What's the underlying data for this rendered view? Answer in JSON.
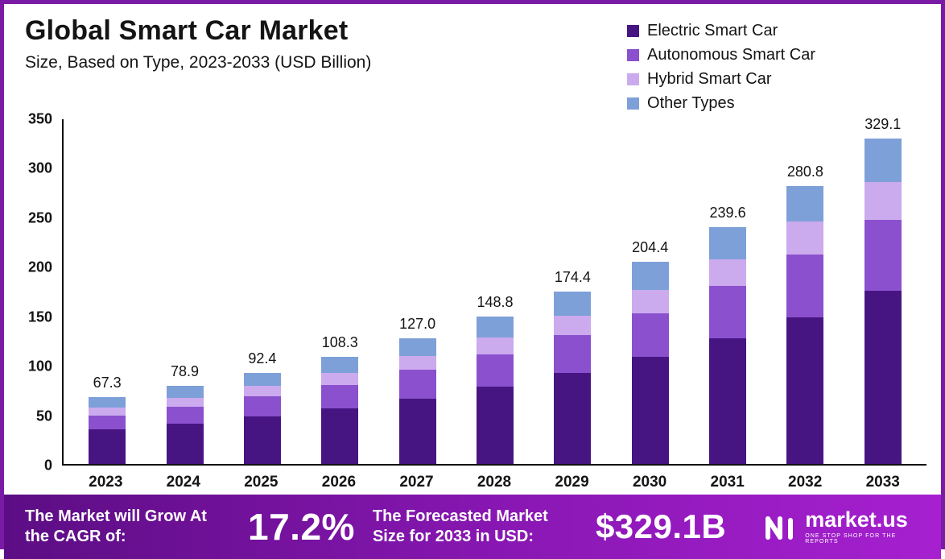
{
  "header": {
    "title": "Global Smart Car Market",
    "subtitle": "Size, Based on Type, 2023-2033 (USD Billion)"
  },
  "chart_data": {
    "type": "bar",
    "stacked": true,
    "title": "Global Smart Car Market",
    "subtitle": "Size, Based on Type, 2023-2033 (USD Billion)",
    "categories": [
      "2023",
      "2024",
      "2025",
      "2026",
      "2027",
      "2028",
      "2029",
      "2030",
      "2031",
      "2032",
      "2033"
    ],
    "totals": [
      "67.3",
      "78.9",
      "92.4",
      "108.3",
      "127.0",
      "148.8",
      "174.4",
      "204.4",
      "239.6",
      "280.8",
      "329.1"
    ],
    "series": [
      {
        "name": "Electric Smart Car",
        "color": "#471582",
        "values": [
          35,
          41,
          48,
          56,
          66,
          78,
          92,
          108,
          127,
          148,
          175
        ]
      },
      {
        "name": "Autonomous Smart Car",
        "color": "#8b50ce",
        "values": [
          14,
          17,
          20,
          24,
          29,
          33,
          38,
          44,
          53,
          64,
          72
        ]
      },
      {
        "name": "Hybrid Smart Car",
        "color": "#cbaaee",
        "values": [
          8,
          9,
          11,
          12,
          14,
          17,
          20,
          24,
          27,
          33,
          38
        ]
      },
      {
        "name": "Other Types",
        "color": "#7ea0d8",
        "values": [
          10.3,
          11.9,
          13.4,
          16.3,
          18.0,
          20.8,
          24.4,
          28.4,
          32.6,
          35.8,
          44.1
        ]
      }
    ],
    "ylim": [
      0,
      350
    ],
    "yticks": [
      0,
      50,
      100,
      150,
      200,
      250,
      300,
      350
    ],
    "xlabel": "",
    "ylabel": "",
    "grid": false,
    "legend_position": "top-right"
  },
  "banner": {
    "cagr_label": "The Market will Grow At the CAGR of:",
    "cagr_value": "17.2%",
    "forecast_label": "The Forecasted Market Size for 2033 in USD:",
    "forecast_value": "$329.1B",
    "brand": "market.us",
    "brand_tagline": "One stop shop for the reports"
  },
  "colors": {
    "frame_border": "#7a1ba6",
    "banner_gradient_start": "#5c0d84",
    "banner_gradient_end": "#a620d0",
    "axis": "#111111",
    "text": "#141414"
  }
}
